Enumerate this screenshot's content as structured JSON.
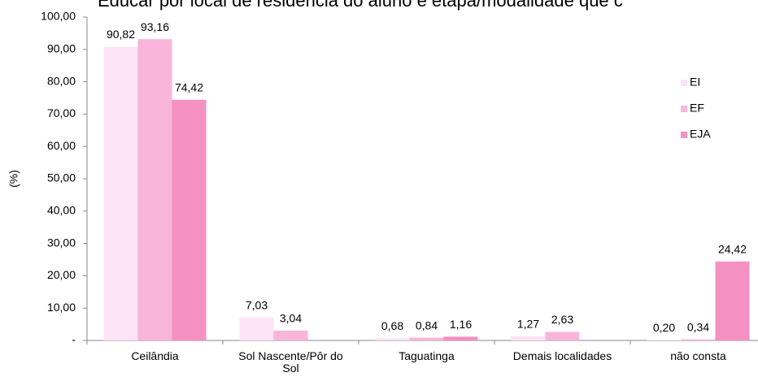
{
  "chart_data": {
    "type": "bar",
    "title": "Educar por local de residência do aluno e etapa/modalidade que c",
    "y_label": "(%)",
    "categories": [
      "Ceilândia",
      "Sol Nascente/Pôr do Sol",
      "Taguatinga",
      "Demais localidades",
      "não consta"
    ],
    "series": [
      {
        "name": "EI",
        "color": "#fde3f5",
        "values": [
          90.82,
          7.03,
          0.68,
          1.27,
          0.2
        ],
        "value_labels": [
          "90,82",
          "7,03",
          "0,68",
          "1,27",
          "0,20"
        ]
      },
      {
        "name": "EF",
        "color": "#f9b5da",
        "values": [
          93.16,
          3.04,
          0.84,
          2.63,
          0.34
        ],
        "value_labels": [
          "93,16",
          "3,04",
          "0,84",
          "2,63",
          "0,34"
        ]
      },
      {
        "name": "EJA",
        "color": "#f590c2",
        "values": [
          74.42,
          null,
          1.16,
          null,
          24.42
        ],
        "value_labels": [
          "74,42",
          null,
          "1,16",
          null,
          "24,42"
        ]
      }
    ],
    "ylim": [
      0,
      100
    ],
    "yticks": [
      {
        "value": 0,
        "label": "-"
      },
      {
        "value": 10,
        "label": "10,00"
      },
      {
        "value": 20,
        "label": "20,00"
      },
      {
        "value": 30,
        "label": "30,00"
      },
      {
        "value": 40,
        "label": "40,00"
      },
      {
        "value": 50,
        "label": "50,00"
      },
      {
        "value": 60,
        "label": "60,00"
      },
      {
        "value": 70,
        "label": "70,00"
      },
      {
        "value": 80,
        "label": "80,00"
      },
      {
        "value": 90,
        "label": "90,00"
      },
      {
        "value": 100,
        "label": "100,00"
      }
    ],
    "legend": "right"
  }
}
